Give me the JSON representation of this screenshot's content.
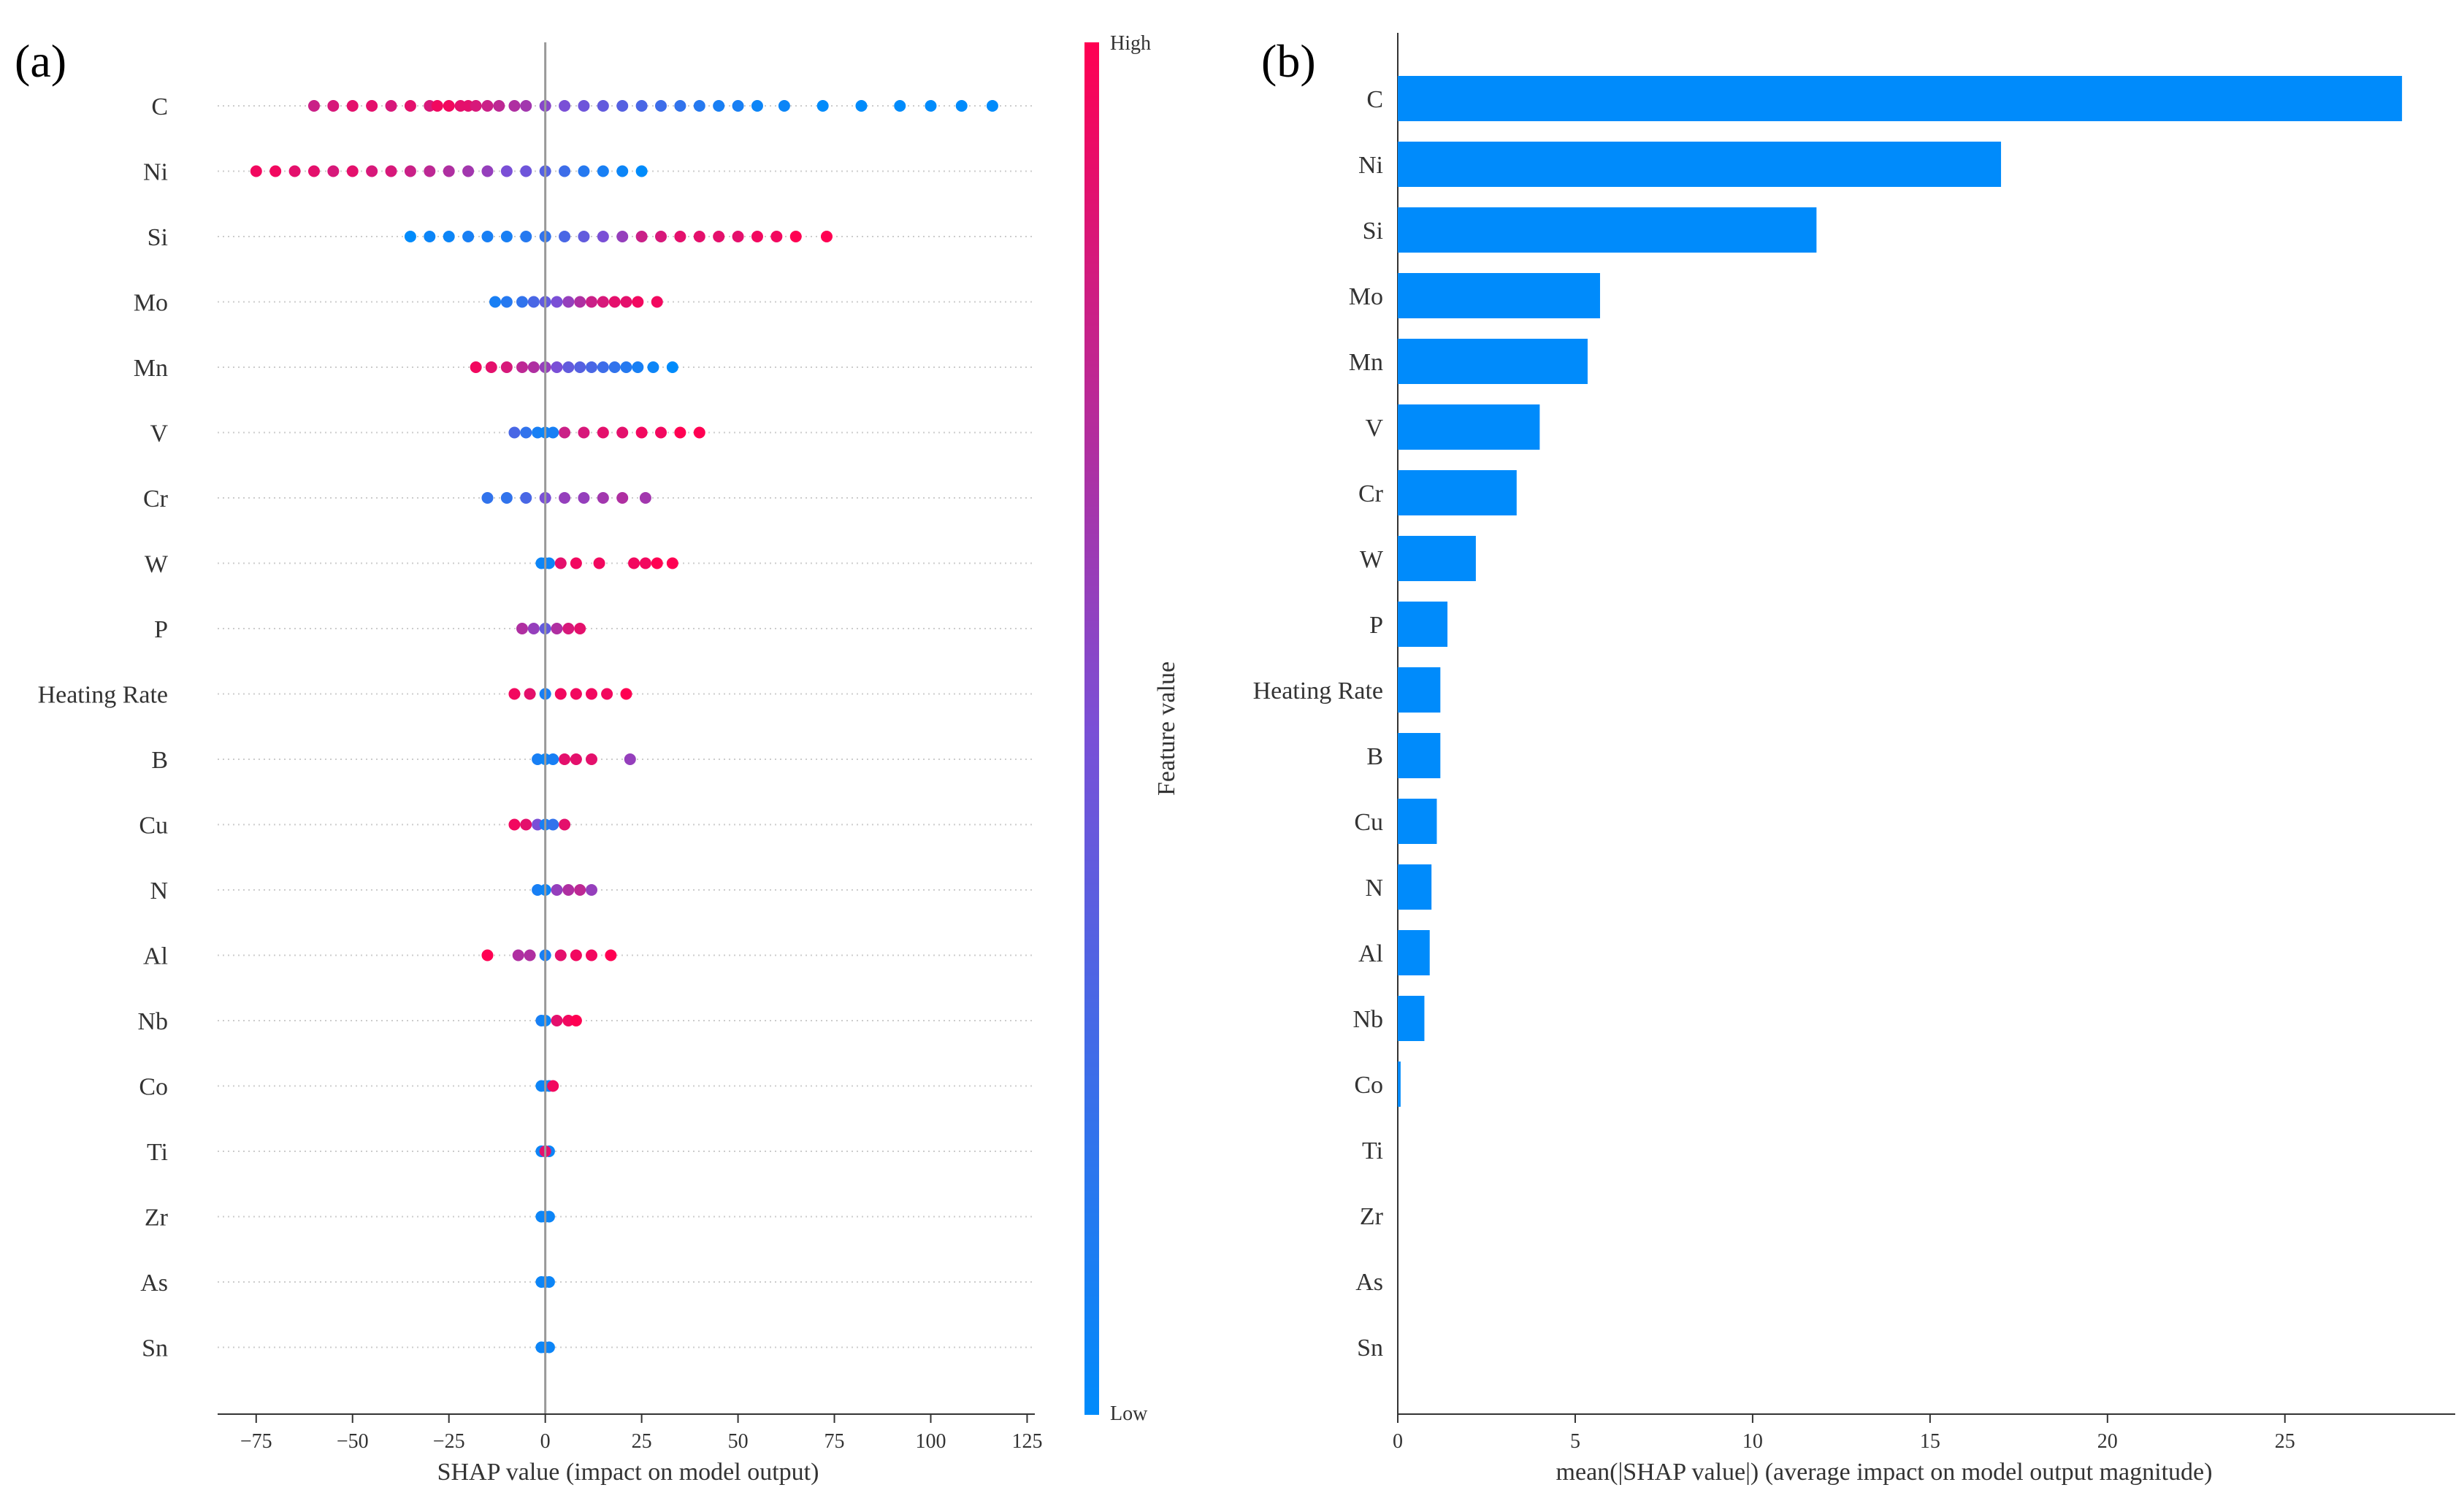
{
  "colors": {
    "low": "#008bfb",
    "high": "#ff0052",
    "axis": "#333333",
    "grid": "#cccccc"
  },
  "chart_data": [
    {
      "panel_label": "(a)",
      "type": "scatter",
      "subtype": "shap-beeswarm",
      "features": [
        "C",
        "Ni",
        "Si",
        "Mo",
        "Mn",
        "V",
        "Cr",
        "W",
        "P",
        "Heating Rate",
        "B",
        "Cu",
        "N",
        "Al",
        "Nb",
        "Co",
        "Ti",
        "Zr",
        "As",
        "Sn"
      ],
      "xlim": [
        -85,
        127
      ],
      "xticks": [
        -75,
        -50,
        -25,
        0,
        25,
        50,
        75,
        100,
        125
      ],
      "xtick_labels": [
        "−75",
        "−50",
        "−25",
        "0",
        "25",
        "50",
        "75",
        "100",
        "125"
      ],
      "xlabel": "SHAP value (impact on model output)",
      "colorbar": {
        "label": "Feature value",
        "high_label": "High",
        "low_label": "Low"
      },
      "points_per_feature": [
        [
          [
            -60,
            0.8
          ],
          [
            -55,
            0.85
          ],
          [
            -50,
            0.9
          ],
          [
            -45,
            0.9
          ],
          [
            -40,
            0.85
          ],
          [
            -35,
            0.9
          ],
          [
            -30,
            0.85
          ],
          [
            -28,
            0.95
          ],
          [
            -25,
            0.95
          ],
          [
            -22,
            0.9
          ],
          [
            -20,
            0.9
          ],
          [
            -18,
            0.85
          ],
          [
            -15,
            0.8
          ],
          [
            -12,
            0.75
          ],
          [
            -8,
            0.7
          ],
          [
            -5,
            0.65
          ],
          [
            0,
            0.55
          ],
          [
            5,
            0.5
          ],
          [
            10,
            0.45
          ],
          [
            15,
            0.4
          ],
          [
            20,
            0.35
          ],
          [
            25,
            0.3
          ],
          [
            30,
            0.25
          ],
          [
            35,
            0.2
          ],
          [
            40,
            0.15
          ],
          [
            45,
            0.1
          ],
          [
            50,
            0.1
          ],
          [
            55,
            0.05
          ],
          [
            62,
            0.05
          ],
          [
            72,
            0.0
          ],
          [
            82,
            0.0
          ],
          [
            92,
            0.0
          ],
          [
            100,
            0.0
          ],
          [
            108,
            0.0
          ],
          [
            116,
            0.0
          ]
        ],
        [
          [
            -75,
            0.95
          ],
          [
            -70,
            0.95
          ],
          [
            -65,
            0.9
          ],
          [
            -60,
            0.9
          ],
          [
            -55,
            0.85
          ],
          [
            -50,
            0.9
          ],
          [
            -45,
            0.85
          ],
          [
            -40,
            0.85
          ],
          [
            -35,
            0.8
          ],
          [
            -30,
            0.75
          ],
          [
            -25,
            0.7
          ],
          [
            -20,
            0.65
          ],
          [
            -15,
            0.6
          ],
          [
            -10,
            0.5
          ],
          [
            -5,
            0.45
          ],
          [
            0,
            0.35
          ],
          [
            5,
            0.25
          ],
          [
            10,
            0.15
          ],
          [
            15,
            0.1
          ],
          [
            20,
            0.05
          ],
          [
            25,
            0.0
          ]
        ],
        [
          [
            -35,
            0.0
          ],
          [
            -30,
            0.05
          ],
          [
            -25,
            0.05
          ],
          [
            -20,
            0.1
          ],
          [
            -15,
            0.1
          ],
          [
            -10,
            0.1
          ],
          [
            -5,
            0.15
          ],
          [
            0,
            0.2
          ],
          [
            5,
            0.3
          ],
          [
            10,
            0.4
          ],
          [
            15,
            0.5
          ],
          [
            20,
            0.6
          ],
          [
            25,
            0.8
          ],
          [
            30,
            0.85
          ],
          [
            35,
            0.9
          ],
          [
            40,
            0.9
          ],
          [
            45,
            0.9
          ],
          [
            50,
            0.9
          ],
          [
            55,
            0.95
          ],
          [
            60,
            0.95
          ],
          [
            65,
            1.0
          ],
          [
            73,
            1.0
          ]
        ],
        [
          [
            -13,
            0.1
          ],
          [
            -10,
            0.15
          ],
          [
            -6,
            0.2
          ],
          [
            -3,
            0.3
          ],
          [
            0,
            0.4
          ],
          [
            3,
            0.5
          ],
          [
            6,
            0.6
          ],
          [
            9,
            0.7
          ],
          [
            12,
            0.8
          ],
          [
            15,
            0.85
          ],
          [
            18,
            0.9
          ],
          [
            21,
            0.9
          ],
          [
            24,
            0.95
          ],
          [
            29,
            0.95
          ]
        ],
        [
          [
            -18,
            0.95
          ],
          [
            -14,
            0.9
          ],
          [
            -10,
            0.85
          ],
          [
            -6,
            0.75
          ],
          [
            -3,
            0.7
          ],
          [
            0,
            0.6
          ],
          [
            3,
            0.5
          ],
          [
            6,
            0.4
          ],
          [
            9,
            0.35
          ],
          [
            12,
            0.3
          ],
          [
            15,
            0.25
          ],
          [
            18,
            0.2
          ],
          [
            21,
            0.15
          ],
          [
            24,
            0.1
          ],
          [
            28,
            0.05
          ],
          [
            33,
            0.0
          ]
        ],
        [
          [
            -8,
            0.3
          ],
          [
            -5,
            0.2
          ],
          [
            -2,
            0.1
          ],
          [
            0,
            0.05
          ],
          [
            2,
            0.1
          ],
          [
            5,
            0.8
          ],
          [
            10,
            0.85
          ],
          [
            15,
            0.9
          ],
          [
            20,
            0.9
          ],
          [
            25,
            0.95
          ],
          [
            30,
            0.95
          ],
          [
            35,
            1.0
          ],
          [
            40,
            1.0
          ]
        ],
        [
          [
            -15,
            0.2
          ],
          [
            -10,
            0.2
          ],
          [
            -5,
            0.3
          ],
          [
            0,
            0.5
          ],
          [
            5,
            0.6
          ],
          [
            10,
            0.6
          ],
          [
            15,
            0.65
          ],
          [
            20,
            0.7
          ],
          [
            26,
            0.65
          ]
        ],
        [
          [
            -1,
            0.05
          ],
          [
            0,
            0.05
          ],
          [
            1,
            0.05
          ],
          [
            4,
            0.9
          ],
          [
            8,
            0.95
          ],
          [
            14,
            0.95
          ],
          [
            23,
            0.95
          ],
          [
            26,
            0.95
          ],
          [
            29,
            1.0
          ],
          [
            33,
            1.0
          ]
        ],
        [
          [
            -6,
            0.7
          ],
          [
            -3,
            0.6
          ],
          [
            0,
            0.4
          ],
          [
            3,
            0.7
          ],
          [
            6,
            0.85
          ],
          [
            9,
            0.9
          ]
        ],
        [
          [
            -8,
            0.95
          ],
          [
            -4,
            0.9
          ],
          [
            0,
            0.1
          ],
          [
            4,
            0.95
          ],
          [
            8,
            0.95
          ],
          [
            12,
            0.95
          ],
          [
            16,
            0.95
          ],
          [
            21,
            1.0
          ]
        ],
        [
          [
            -2,
            0.1
          ],
          [
            0,
            0.05
          ],
          [
            2,
            0.1
          ],
          [
            5,
            0.9
          ],
          [
            8,
            0.9
          ],
          [
            12,
            0.9
          ],
          [
            22,
            0.6
          ]
        ],
        [
          [
            -8,
            0.95
          ],
          [
            -5,
            0.9
          ],
          [
            -2,
            0.5
          ],
          [
            0,
            0.1
          ],
          [
            2,
            0.2
          ],
          [
            5,
            0.9
          ]
        ],
        [
          [
            -2,
            0.1
          ],
          [
            0,
            0.05
          ],
          [
            3,
            0.6
          ],
          [
            6,
            0.7
          ],
          [
            9,
            0.75
          ],
          [
            12,
            0.6
          ]
        ],
        [
          [
            -15,
            1.0
          ],
          [
            -7,
            0.7
          ],
          [
            -4,
            0.7
          ],
          [
            0,
            0.1
          ],
          [
            4,
            0.9
          ],
          [
            8,
            0.95
          ],
          [
            12,
            0.95
          ],
          [
            17,
            1.0
          ]
        ],
        [
          [
            -1,
            0.1
          ],
          [
            0,
            0.05
          ],
          [
            3,
            0.9
          ],
          [
            6,
            0.95
          ],
          [
            8,
            1.0
          ]
        ],
        [
          [
            -1,
            0.05
          ],
          [
            0,
            0.05
          ],
          [
            1,
            0.05
          ],
          [
            2,
            0.95
          ]
        ],
        [
          [
            -1,
            0.05
          ],
          [
            0,
            0.05
          ],
          [
            1,
            0.05
          ],
          [
            0,
            0.9
          ]
        ],
        [
          [
            -1,
            0.05
          ],
          [
            0,
            0.05
          ],
          [
            1,
            0.05
          ]
        ],
        [
          [
            -1,
            0.05
          ],
          [
            0,
            0.05
          ],
          [
            1,
            0.05
          ]
        ],
        [
          [
            -1,
            0.05
          ],
          [
            0,
            0.05
          ],
          [
            1,
            0.05
          ]
        ]
      ]
    },
    {
      "panel_label": "(b)",
      "type": "bar",
      "orientation": "horizontal",
      "categories": [
        "C",
        "Ni",
        "Si",
        "Mo",
        "Mn",
        "V",
        "Cr",
        "W",
        "P",
        "Heating Rate",
        "B",
        "Cu",
        "N",
        "Al",
        "Nb",
        "Co",
        "Ti",
        "Zr",
        "As",
        "Sn"
      ],
      "values": [
        28.3,
        17.0,
        11.8,
        5.7,
        5.35,
        4.0,
        3.35,
        2.2,
        1.4,
        1.2,
        1.2,
        1.1,
        0.95,
        0.9,
        0.75,
        0.08,
        0.0,
        0.0,
        0.0,
        0.0
      ],
      "xlim": [
        0,
        29.8
      ],
      "xticks": [
        0,
        5,
        10,
        15,
        20,
        25
      ],
      "xtick_labels": [
        "0",
        "5",
        "10",
        "15",
        "20",
        "25"
      ],
      "xlabel": "mean(|SHAP value|) (average impact on model output magnitude)"
    }
  ]
}
